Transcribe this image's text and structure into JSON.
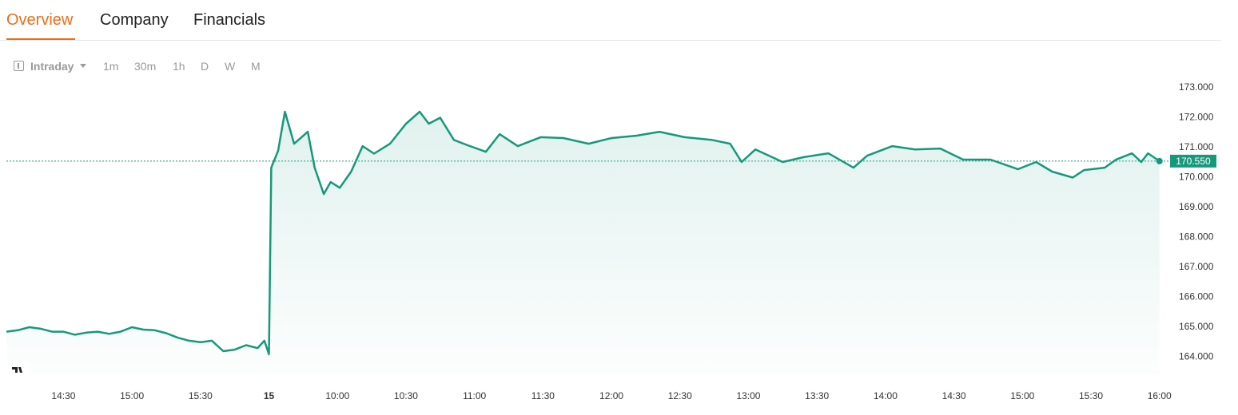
{
  "tabs": [
    "Overview",
    "Company",
    "Financials"
  ],
  "toolbar": {
    "interval": "Intraday",
    "options": [
      "1m",
      "30m",
      "1h",
      "D",
      "W",
      "M"
    ]
  },
  "chart_data": {
    "type": "line",
    "x": [
      5,
      10,
      15,
      20,
      25,
      30,
      35,
      40,
      45,
      50,
      55,
      60,
      65,
      70,
      75,
      80,
      85,
      90,
      95,
      100,
      105,
      110,
      115,
      118,
      120,
      121,
      124,
      127,
      131,
      137,
      140,
      144,
      147,
      151,
      156,
      161,
      166,
      173,
      180,
      186,
      190,
      195,
      201,
      207,
      215,
      221,
      229,
      239,
      249,
      260,
      270,
      281,
      291,
      302,
      314,
      322,
      327,
      333,
      345,
      354,
      365,
      376,
      382,
      393,
      403,
      414,
      424,
      436,
      448,
      456,
      463,
      472,
      477,
      486,
      491,
      498,
      502,
      505,
      510
    ],
    "series": [
      {
        "color": "#16987c",
        "values": [
          164.85,
          164.9,
          165.0,
          164.95,
          164.85,
          164.85,
          164.75,
          164.82,
          164.85,
          164.78,
          164.85,
          165.0,
          164.92,
          164.9,
          164.8,
          164.65,
          164.55,
          164.5,
          164.55,
          164.2,
          164.25,
          164.4,
          164.3,
          164.55,
          164.1,
          170.33,
          170.9,
          172.2,
          171.13,
          171.53,
          170.33,
          169.45,
          169.85,
          169.66,
          170.2,
          171.05,
          170.8,
          171.13,
          171.8,
          172.2,
          171.8,
          172.0,
          171.26,
          171.08,
          170.86,
          171.45,
          171.05,
          171.35,
          171.32,
          171.13,
          171.32,
          171.4,
          171.53,
          171.35,
          171.26,
          171.13,
          170.52,
          170.94,
          170.52,
          170.68,
          170.81,
          170.33,
          170.73,
          171.05,
          170.94,
          170.97,
          170.6,
          170.6,
          170.28,
          170.52,
          170.2,
          170.0,
          170.25,
          170.33,
          170.6,
          170.81,
          170.52,
          170.81,
          170.55
        ]
      }
    ],
    "xlim": [
      5,
      515
    ],
    "ylim": [
      163.4,
      173.4
    ],
    "xticks": [
      {
        "value": 30,
        "label": "14:30"
      },
      {
        "value": 60,
        "label": "15:00"
      },
      {
        "value": 90,
        "label": "15:30"
      },
      {
        "value": 120,
        "label": "15"
      },
      {
        "value": 150,
        "label": "10:00"
      },
      {
        "value": 180,
        "label": "10:30"
      },
      {
        "value": 210,
        "label": "11:00"
      },
      {
        "value": 240,
        "label": "11:30"
      },
      {
        "value": 270,
        "label": "12:00"
      },
      {
        "value": 300,
        "label": "12:30"
      },
      {
        "value": 330,
        "label": "13:00"
      },
      {
        "value": 360,
        "label": "13:30"
      },
      {
        "value": 390,
        "label": "14:00"
      },
      {
        "value": 420,
        "label": "14:30"
      },
      {
        "value": 450,
        "label": "15:00"
      },
      {
        "value": 480,
        "label": "15:30"
      },
      {
        "value": 510,
        "label": "16:00"
      }
    ],
    "yticks": [
      {
        "value": 164,
        "label": "164.000"
      },
      {
        "value": 165,
        "label": "165.000"
      },
      {
        "value": 166,
        "label": "166.000"
      },
      {
        "value": 167,
        "label": "167.000"
      },
      {
        "value": 168,
        "label": "168.000"
      },
      {
        "value": 169,
        "label": "169.000"
      },
      {
        "value": 170,
        "label": "170.000"
      },
      {
        "value": 171,
        "label": "171.000"
      },
      {
        "value": 172,
        "label": "172.000"
      },
      {
        "value": 173,
        "label": "173.000"
      }
    ],
    "last_price": {
      "value": 170.55,
      "label": "170.550"
    }
  }
}
